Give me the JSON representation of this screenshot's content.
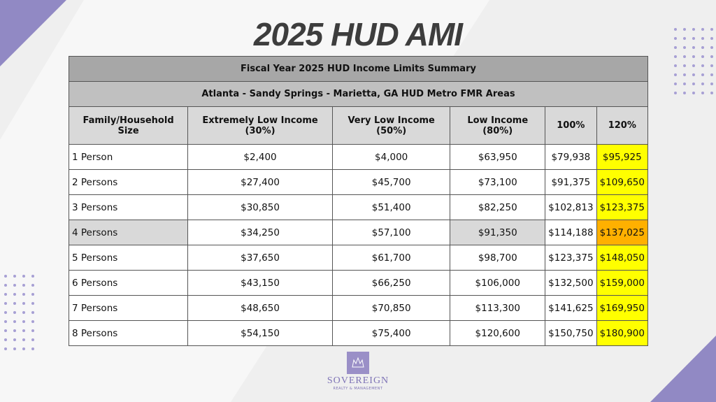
{
  "title": "2025 HUD AMI",
  "table": {
    "caption": "Fiscal Year 2025 HUD Income Limits Summary",
    "subcaption": "Atlanta - Sandy Springs - Marietta, GA HUD Metro FMR Areas",
    "columns": [
      "Family/Household Size",
      "Extremely Low Income (30%)",
      "Very Low Income (50%)",
      "Low Income (80%)",
      "100%",
      "120%"
    ],
    "rows": [
      [
        "1 Person",
        "$2,400",
        "$4,000",
        "$63,950",
        "$79,938",
        "$95,925"
      ],
      [
        "2 Persons",
        "$27,400",
        "$45,700",
        "$73,100",
        "$91,375",
        "$109,650"
      ],
      [
        "3 Persons",
        "$30,850",
        "$51,400",
        "$82,250",
        "$102,813",
        "$123,375"
      ],
      [
        "4 Persons",
        "$34,250",
        "$57,100",
        "$91,350",
        "$114,188",
        "$137,025"
      ],
      [
        "5 Persons",
        "$37,650",
        "$61,700",
        "$98,700",
        "$123,375",
        "$148,050"
      ],
      [
        "6 Persons",
        "$43,150",
        "$66,250",
        "$106,000",
        "$132,500",
        "$159,000"
      ],
      [
        "7 Persons",
        "$48,650",
        "$70,850",
        "$113,300",
        "$141,625",
        "$169,950"
      ],
      [
        "8 Persons",
        "$54,150",
        "$75,400",
        "$120,600",
        "$150,750",
        "$180,900"
      ]
    ]
  },
  "logo": {
    "name": "SOVEREIGN",
    "tagline": "REALTY & MANAGEMENT"
  }
}
